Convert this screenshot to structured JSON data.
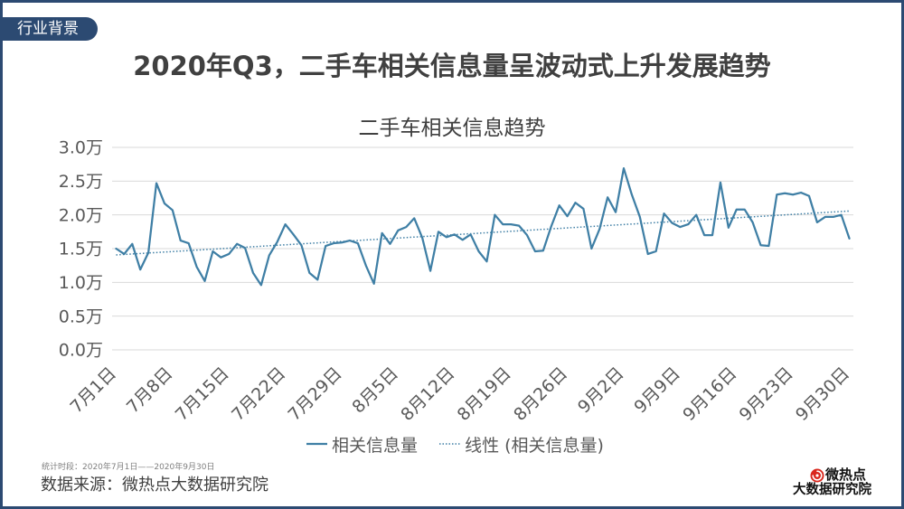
{
  "header": {
    "tag": "行业背景",
    "title": "2020年Q3，二手车相关信息量呈波动式上升发展趋势"
  },
  "chart_data": {
    "type": "line",
    "title": "二手车相关信息趋势",
    "x_tick_labels": [
      "7月1日",
      "7月8日",
      "7月15日",
      "7月22日",
      "7月29日",
      "8月5日",
      "8月12日",
      "8月19日",
      "8月26日",
      "9月2日",
      "9月9日",
      "9月16日",
      "9月23日",
      "9月30日"
    ],
    "y_ticks": [
      0,
      0.5,
      1.0,
      1.5,
      2.0,
      2.5,
      3.0
    ],
    "y_tick_labels": [
      "0.0万",
      "0.5万",
      "1.0万",
      "1.5万",
      "2.0万",
      "2.5万",
      "3.0万"
    ],
    "ylim": [
      0,
      3.0
    ],
    "grid": true,
    "legend": "bottom",
    "series": [
      {
        "name": "相关信息量",
        "style": "solid",
        "color": "#3f7fa5",
        "values": [
          1.5,
          1.42,
          1.57,
          1.19,
          1.44,
          2.47,
          2.17,
          2.07,
          1.62,
          1.58,
          1.23,
          1.02,
          1.46,
          1.37,
          1.42,
          1.57,
          1.51,
          1.14,
          0.96,
          1.4,
          1.6,
          1.86,
          1.71,
          1.55,
          1.14,
          1.04,
          1.54,
          1.58,
          1.59,
          1.62,
          1.58,
          1.25,
          0.98,
          1.73,
          1.57,
          1.77,
          1.82,
          1.95,
          1.66,
          1.17,
          1.75,
          1.67,
          1.71,
          1.63,
          1.71,
          1.46,
          1.31,
          2.0,
          1.86,
          1.86,
          1.84,
          1.7,
          1.46,
          1.47,
          1.83,
          2.14,
          1.98,
          2.18,
          2.09,
          1.5,
          1.79,
          2.26,
          2.04,
          2.69,
          2.3,
          1.97,
          1.42,
          1.46,
          2.02,
          1.88,
          1.82,
          1.86,
          2.0,
          1.7,
          1.7,
          2.48,
          1.81,
          2.08,
          2.08,
          1.89,
          1.55,
          1.54,
          2.3,
          2.32,
          2.3,
          2.33,
          2.28,
          1.89,
          1.97,
          1.97,
          2.0,
          1.65
        ]
      },
      {
        "name": "线性 (相关信息量)",
        "kind": "linear-trend",
        "style": "dotted",
        "color": "#3f7fa5"
      }
    ]
  },
  "footer": {
    "period": "统计时段：2020年7月1日——2020年9月30日",
    "source": "数据来源：微热点大数据研究院"
  },
  "logo": {
    "icon": "weiredian-logo-icon",
    "line1": "微热点",
    "line2": "大数据研究院",
    "icon_color": "#d9261c"
  },
  "colors": {
    "frame": "#2c4a72",
    "gridline": "#d9d9d9",
    "axis_text": "#595959",
    "title_text": "#404040"
  }
}
